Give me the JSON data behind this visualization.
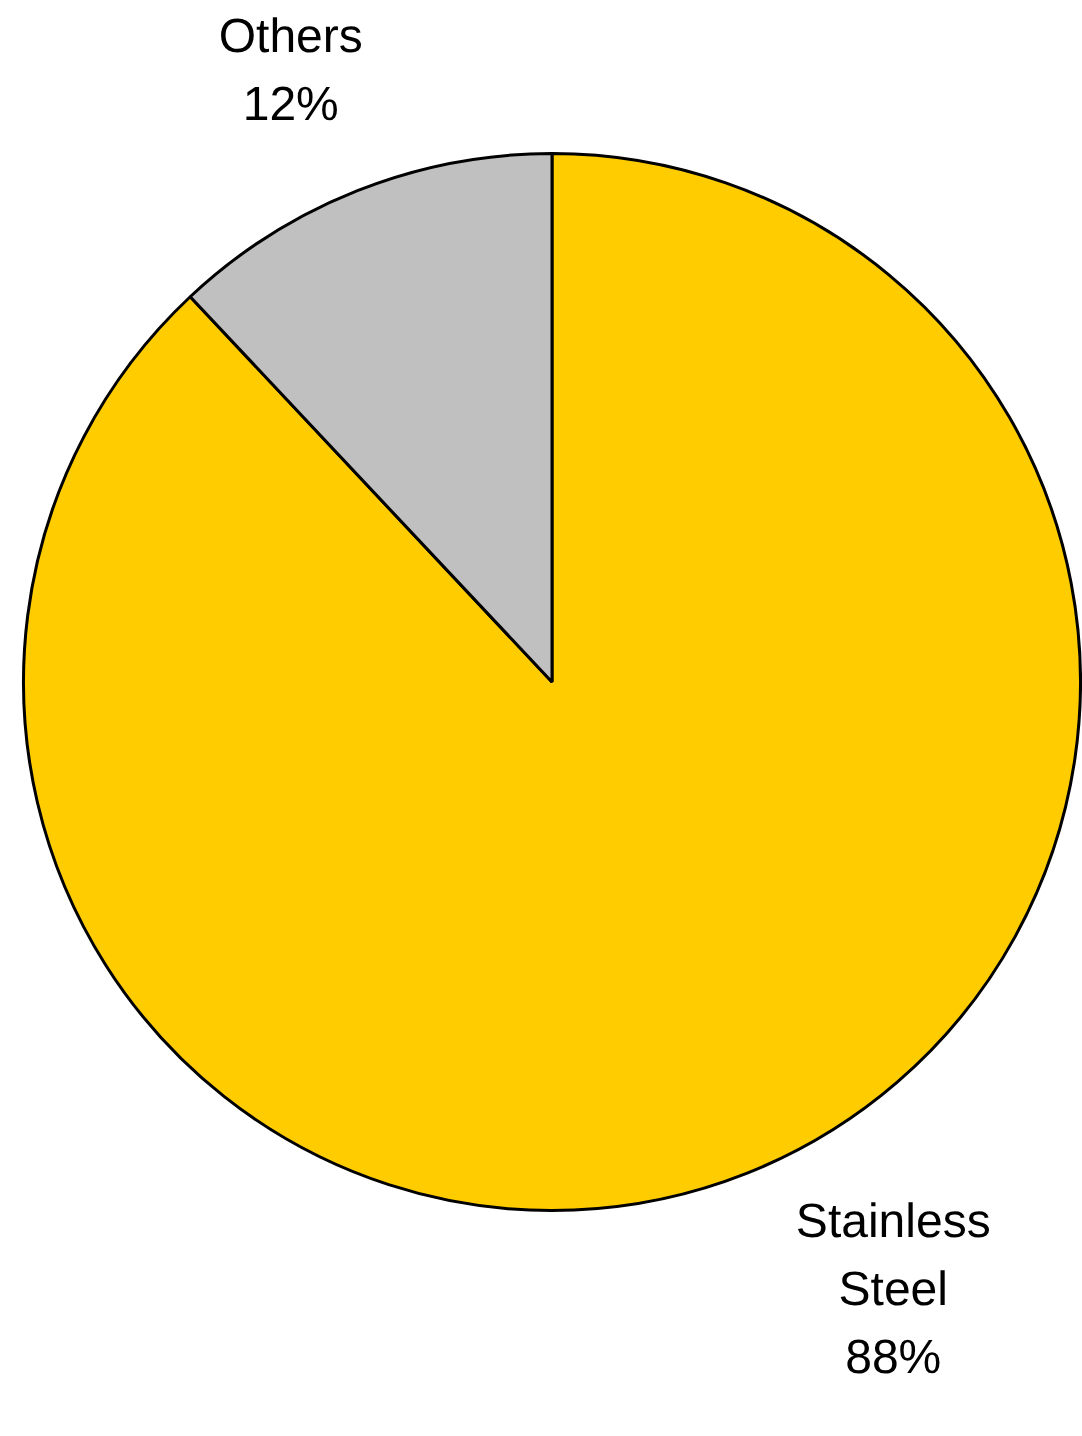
{
  "chart_data": {
    "type": "pie",
    "categories": [
      "Stainless Steel",
      "Others"
    ],
    "values": [
      88,
      12
    ],
    "value_labels": [
      "88%",
      "12%"
    ],
    "colors": [
      "#ffcc00",
      "#c0c0c0"
    ],
    "legend": false
  }
}
